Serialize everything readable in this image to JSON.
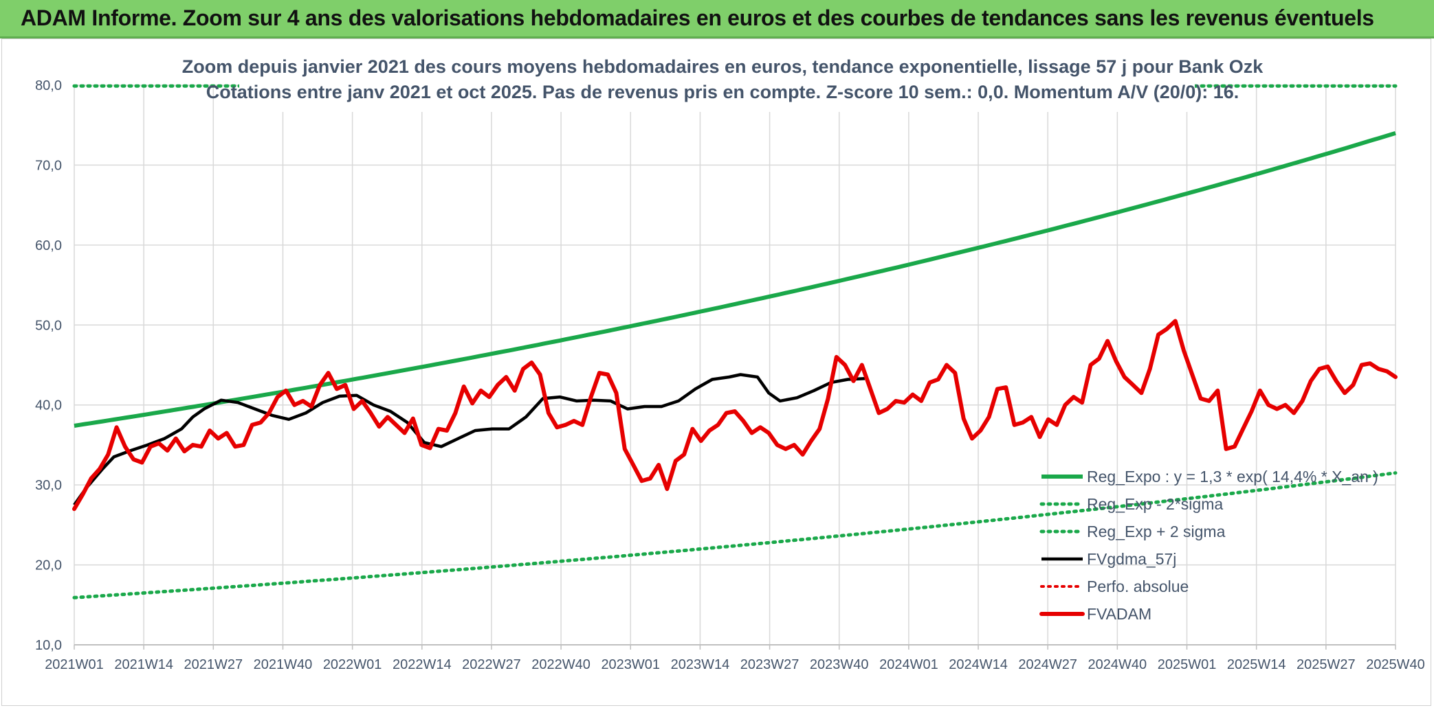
{
  "header": {
    "title": "ADAM Informe. Zoom sur 4 ans des valorisations hebdomadaires en euros et des courbes de tendances sans les revenus éventuels"
  },
  "colors": {
    "banner": "#7fcf6a",
    "trend_green": "#1aa84a",
    "black": "#000000",
    "red": "#e60000",
    "grid": "#d9d9d9",
    "text": "#44546a"
  },
  "chart_data": {
    "type": "line",
    "title_lines": [
      "Zoom depuis janvier 2021 des cours moyens hebdomadaires en euros, tendance exponentielle, lissage 57 j pour Bank Ozk",
      "Cotations entre janv 2021 et oct 2025. Pas de revenus pris en compte. Z-score 10 sem.: 0,0. Momentum A/V (20/0): 16."
    ],
    "x_labels": [
      "2021W01",
      "2021W14",
      "2021W27",
      "2021W40",
      "2022W01",
      "2022W14",
      "2022W27",
      "2022W40",
      "2023W01",
      "2023W14",
      "2023W27",
      "2023W40",
      "2024W01",
      "2024W14",
      "2024W27",
      "2024W40",
      "2025W01",
      "2025W14",
      "2025W27",
      "2025W40"
    ],
    "y_ticks": [
      "10,0",
      "20,0",
      "30,0",
      "40,0",
      "50,0",
      "60,0",
      "70,0",
      "80,0"
    ],
    "ylim": [
      10,
      80
    ],
    "legend": [
      "Reg_Expo : y = 1,3 * exp( 14,4% * X_an )",
      "Reg_Exp - 2*sigma",
      "Reg_Exp + 2 sigma",
      "FVgdma_57j",
      "Perfo. absolue",
      "FVADAM"
    ],
    "series": [
      {
        "name": "Reg_Expo",
        "style": "solid-green",
        "start": 37.4,
        "end": 74.0
      },
      {
        "name": "Reg_Exp - 2*sigma",
        "style": "dotted-green",
        "start": 15.9,
        "end": 31.5
      },
      {
        "name": "Reg_Exp + 2 sigma",
        "style": "dotted-green",
        "start": 79.9,
        "end": 79.9
      },
      {
        "name": "FVgdma_57j",
        "style": "solid-black",
        "points": [
          [
            0,
            27.5
          ],
          [
            4,
            29.5
          ],
          [
            10,
            32
          ],
          [
            14,
            33.5
          ],
          [
            20,
            34.3
          ],
          [
            26,
            35
          ],
          [
            32,
            35.8
          ],
          [
            38,
            37
          ],
          [
            42,
            38.5
          ],
          [
            46,
            39.5
          ],
          [
            52,
            40.6
          ],
          [
            58,
            40.3
          ],
          [
            64,
            39.5
          ],
          [
            70,
            38.7
          ],
          [
            76,
            38.2
          ],
          [
            82,
            39
          ],
          [
            88,
            40.3
          ],
          [
            94,
            41.1
          ],
          [
            100,
            41.2
          ],
          [
            106,
            40
          ],
          [
            112,
            39.2
          ],
          [
            118,
            37.8
          ],
          [
            124,
            35.3
          ],
          [
            130,
            34.8
          ],
          [
            136,
            35.8
          ],
          [
            142,
            36.8
          ],
          [
            148,
            37
          ],
          [
            154,
            37
          ],
          [
            160,
            38.5
          ],
          [
            166,
            40.8
          ],
          [
            172,
            41
          ],
          [
            178,
            40.5
          ],
          [
            184,
            40.6
          ],
          [
            190,
            40.5
          ],
          [
            196,
            39.5
          ],
          [
            202,
            39.8
          ],
          [
            208,
            39.8
          ],
          [
            214,
            40.5
          ],
          [
            220,
            42
          ],
          [
            226,
            43.2
          ],
          [
            232,
            43.5
          ],
          [
            236,
            43.8
          ],
          [
            242,
            43.5
          ],
          [
            246,
            41.5
          ],
          [
            250,
            40.5
          ],
          [
            256,
            40.9
          ],
          [
            262,
            41.8
          ],
          [
            268,
            42.8
          ],
          [
            274,
            43.2
          ],
          [
            280,
            43.3
          ]
        ]
      },
      {
        "name": "Perfo. absolue",
        "style": "dotted-red",
        "points": []
      },
      {
        "name": "FVADAM",
        "style": "solid-red",
        "points": [
          [
            0,
            27
          ],
          [
            3,
            28.8
          ],
          [
            6,
            30.8
          ],
          [
            9,
            32
          ],
          [
            12,
            33.8
          ],
          [
            15,
            37.2
          ],
          [
            18,
            34.8
          ],
          [
            21,
            33.2
          ],
          [
            24,
            32.8
          ],
          [
            27,
            34.8
          ],
          [
            30,
            35.2
          ],
          [
            33,
            34.3
          ],
          [
            36,
            35.8
          ],
          [
            39,
            34.2
          ],
          [
            42,
            35
          ],
          [
            45,
            34.8
          ],
          [
            48,
            36.8
          ],
          [
            51,
            35.8
          ],
          [
            54,
            36.5
          ],
          [
            57,
            34.8
          ],
          [
            60,
            35
          ],
          [
            63,
            37.5
          ],
          [
            66,
            37.8
          ],
          [
            69,
            39
          ],
          [
            72,
            41
          ],
          [
            75,
            41.8
          ],
          [
            78,
            40
          ],
          [
            81,
            40.5
          ],
          [
            84,
            39.8
          ],
          [
            87,
            42.5
          ],
          [
            90,
            44
          ],
          [
            93,
            42
          ],
          [
            96,
            42.5
          ],
          [
            99,
            39.5
          ],
          [
            102,
            40.5
          ],
          [
            105,
            39
          ],
          [
            108,
            37.3
          ],
          [
            111,
            38.5
          ],
          [
            114,
            37.5
          ],
          [
            117,
            36.5
          ],
          [
            120,
            38.3
          ],
          [
            123,
            35
          ],
          [
            126,
            34.6
          ],
          [
            129,
            37
          ],
          [
            132,
            36.8
          ],
          [
            135,
            39
          ],
          [
            138,
            42.3
          ],
          [
            141,
            40.2
          ],
          [
            144,
            41.8
          ],
          [
            147,
            41
          ],
          [
            150,
            42.5
          ],
          [
            153,
            43.5
          ],
          [
            156,
            41.8
          ],
          [
            159,
            44.5
          ],
          [
            162,
            45.3
          ],
          [
            165,
            43.8
          ],
          [
            168,
            39
          ],
          [
            171,
            37.2
          ],
          [
            174,
            37.5
          ],
          [
            177,
            38
          ],
          [
            180,
            37.5
          ],
          [
            183,
            41
          ],
          [
            186,
            44
          ],
          [
            189,
            43.8
          ],
          [
            192,
            41.5
          ],
          [
            195,
            34.5
          ],
          [
            198,
            32.5
          ],
          [
            201,
            30.5
          ],
          [
            204,
            30.8
          ],
          [
            207,
            32.5
          ],
          [
            210,
            29.5
          ],
          [
            213,
            33
          ],
          [
            216,
            33.8
          ],
          [
            219,
            37
          ],
          [
            222,
            35.5
          ],
          [
            225,
            36.8
          ],
          [
            228,
            37.5
          ],
          [
            231,
            39
          ],
          [
            234,
            39.2
          ],
          [
            237,
            38
          ],
          [
            240,
            36.5
          ],
          [
            243,
            37.2
          ],
          [
            246,
            36.5
          ],
          [
            249,
            35
          ],
          [
            252,
            34.5
          ],
          [
            255,
            35
          ],
          [
            258,
            33.8
          ],
          [
            261,
            35.5
          ],
          [
            264,
            37
          ],
          [
            267,
            40.8
          ],
          [
            270,
            46
          ],
          [
            273,
            45
          ],
          [
            276,
            43
          ],
          [
            279,
            45
          ],
          [
            282,
            42
          ],
          [
            285,
            39
          ],
          [
            288,
            39.5
          ],
          [
            291,
            40.5
          ],
          [
            294,
            40.3
          ],
          [
            297,
            41.3
          ],
          [
            300,
            40.5
          ],
          [
            303,
            42.8
          ],
          [
            306,
            43.2
          ],
          [
            309,
            45
          ],
          [
            312,
            44
          ],
          [
            315,
            38.3
          ],
          [
            318,
            35.8
          ],
          [
            321,
            36.8
          ],
          [
            324,
            38.5
          ],
          [
            327,
            42
          ],
          [
            330,
            42.2
          ],
          [
            333,
            37.5
          ],
          [
            336,
            37.8
          ],
          [
            339,
            38.5
          ],
          [
            342,
            36
          ],
          [
            345,
            38.2
          ],
          [
            348,
            37.5
          ],
          [
            351,
            40
          ],
          [
            354,
            41
          ],
          [
            357,
            40.3
          ],
          [
            360,
            45
          ],
          [
            363,
            45.8
          ],
          [
            366,
            48
          ],
          [
            369,
            45.5
          ],
          [
            372,
            43.5
          ],
          [
            375,
            42.5
          ],
          [
            378,
            41.5
          ],
          [
            381,
            44.5
          ],
          [
            384,
            48.8
          ],
          [
            387,
            49.5
          ],
          [
            390,
            50.5
          ],
          [
            393,
            46.8
          ],
          [
            396,
            43.8
          ],
          [
            399,
            40.8
          ],
          [
            402,
            40.5
          ],
          [
            405,
            41.8
          ],
          [
            408,
            34.5
          ],
          [
            411,
            34.8
          ],
          [
            414,
            37
          ],
          [
            417,
            39.2
          ],
          [
            420,
            41.8
          ],
          [
            423,
            40
          ],
          [
            426,
            39.5
          ],
          [
            429,
            40
          ],
          [
            432,
            39
          ],
          [
            435,
            40.5
          ],
          [
            438,
            43
          ],
          [
            441,
            44.5
          ],
          [
            444,
            44.8
          ],
          [
            447,
            43
          ],
          [
            450,
            41.5
          ],
          [
            453,
            42.5
          ],
          [
            456,
            45
          ],
          [
            459,
            45.2
          ],
          [
            462,
            44.5
          ],
          [
            465,
            44.2
          ],
          [
            468,
            43.5
          ]
        ]
      }
    ]
  }
}
